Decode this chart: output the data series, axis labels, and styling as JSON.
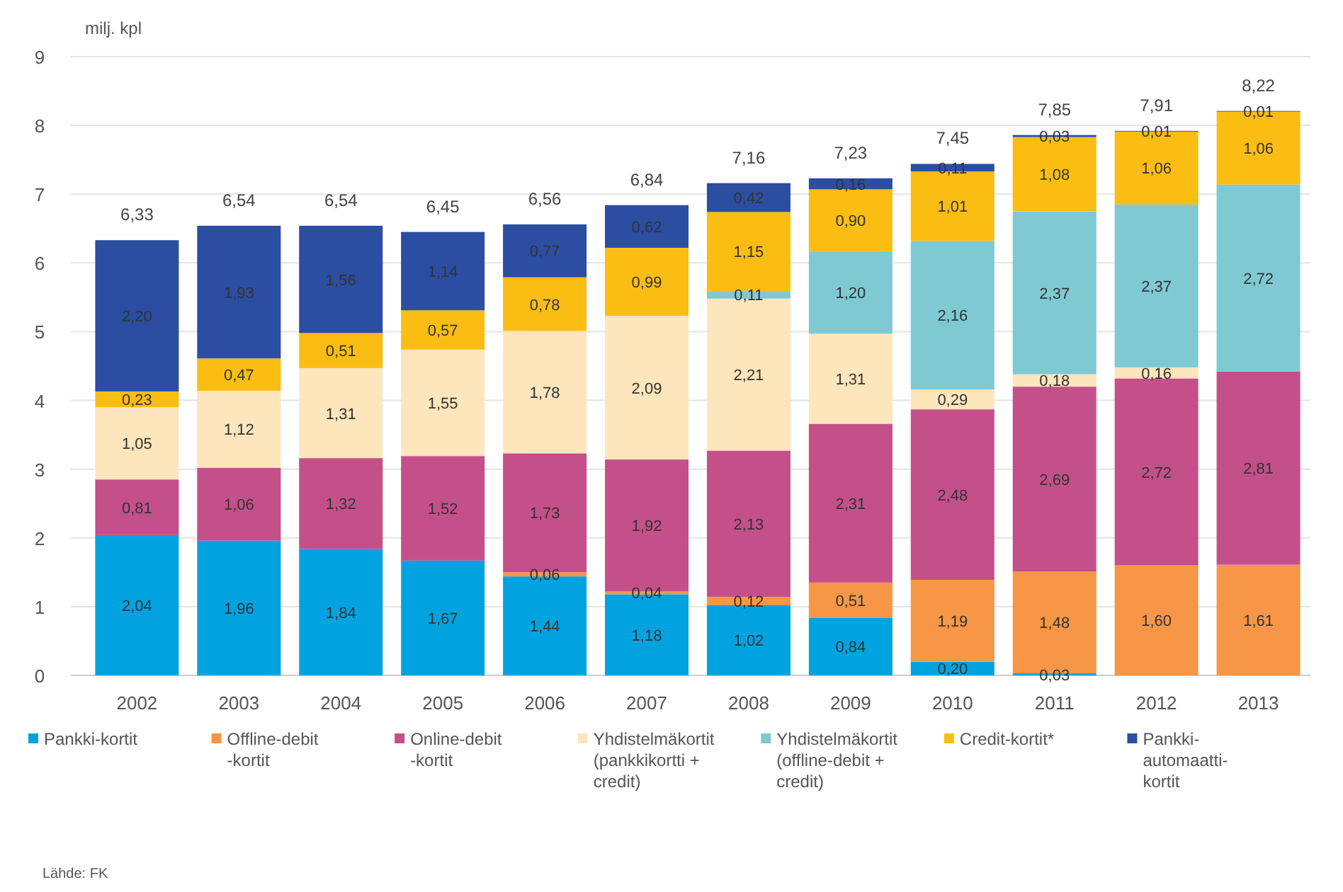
{
  "chart_data": {
    "type": "bar",
    "stacked": true,
    "ylabel": "milj. kpl",
    "categories": [
      "2002",
      "2003",
      "2004",
      "2005",
      "2006",
      "2007",
      "2008",
      "2009",
      "2010",
      "2011",
      "2012",
      "2013"
    ],
    "ylim": [
      0,
      9
    ],
    "yticks": [
      0,
      1,
      2,
      3,
      4,
      5,
      6,
      7,
      8,
      9
    ],
    "grid": "y",
    "legend": "bottom",
    "data_labels": true,
    "series": [
      {
        "name": "Pankki-kortit",
        "color": "#00a3e0",
        "values": [
          2.04,
          1.96,
          1.84,
          1.67,
          1.44,
          1.18,
          1.02,
          0.84,
          0.2,
          0.03,
          null,
          null
        ],
        "value_labels": [
          "2,04",
          "1,96",
          "1,84",
          "1,67",
          "1,44",
          "1,18",
          "1,02",
          "0,84",
          "0,20",
          "0,03",
          null,
          null
        ]
      },
      {
        "name": "Offline-debit -kortit",
        "color": "#f79646",
        "values": [
          null,
          null,
          null,
          null,
          0.06,
          0.04,
          0.12,
          0.51,
          1.19,
          1.48,
          1.6,
          1.61
        ],
        "value_labels": [
          null,
          null,
          null,
          null,
          "0,06",
          "0,04",
          "0,12",
          "0,51",
          "1,19",
          "1,48",
          "1,60",
          "1,61"
        ]
      },
      {
        "name": "Online-debit -kortit",
        "color": "#c4508a",
        "values": [
          0.81,
          1.06,
          1.32,
          1.52,
          1.73,
          1.92,
          2.13,
          2.31,
          2.48,
          2.69,
          2.72,
          2.81
        ],
        "value_labels": [
          "0,81",
          "1,06",
          "1,32",
          "1,52",
          "1,73",
          "1,92",
          "2,13",
          "2,31",
          "2,48",
          "2,69",
          "2,72",
          "2,81"
        ]
      },
      {
        "name": "Yhdistelmäkortit (pankkikortti + credit)",
        "color": "#fde5bc",
        "values": [
          1.05,
          1.12,
          1.31,
          1.55,
          1.78,
          2.09,
          2.21,
          1.31,
          0.29,
          0.18,
          0.16,
          null
        ],
        "value_labels": [
          "1,05",
          "1,12",
          "1,31",
          "1,55",
          "1,78",
          "2,09",
          "2,21",
          "1,31",
          "0,29",
          "0,18",
          "0,16",
          null
        ]
      },
      {
        "name": "Yhdistelmäkortit (offline-debit + credit)",
        "color": "#7fc9d3",
        "values": [
          null,
          null,
          null,
          null,
          null,
          null,
          0.11,
          1.2,
          2.16,
          2.37,
          2.37,
          2.72
        ],
        "value_labels": [
          null,
          null,
          null,
          null,
          null,
          null,
          "0,11",
          "1,20",
          "2,16",
          "2,37",
          "2,37",
          "2,72"
        ]
      },
      {
        "name": "Credit-kortit*",
        "color": "#fbbd12",
        "values": [
          0.23,
          0.47,
          0.51,
          0.57,
          0.78,
          0.99,
          1.15,
          0.9,
          1.01,
          1.08,
          1.06,
          1.06
        ],
        "value_labels": [
          "0,23",
          "0,47",
          "0,51",
          "0,57",
          "0,78",
          "0,99",
          "1,15",
          "0,90",
          "1,01",
          "1,08",
          "1,06",
          "1,06"
        ]
      },
      {
        "name": "Pankki-automaatti-kortit",
        "color": "#2b4ea2",
        "values": [
          2.2,
          1.93,
          1.56,
          1.14,
          0.77,
          0.62,
          0.42,
          0.16,
          0.11,
          0.03,
          0.01,
          0.01
        ],
        "value_labels": [
          "2,20",
          "1,93",
          "1,56",
          "1,14",
          "0,77",
          "0,62",
          "0,42",
          "0,16",
          "0,11",
          "0,03",
          "0,01",
          "0,01"
        ]
      }
    ],
    "totals": [
      "6,33",
      "6,54",
      "6,54",
      "6,45",
      "6,56",
      "6,84",
      "7,16",
      "7,23",
      "7,45",
      "7,85",
      "7,91",
      "8,22"
    ],
    "annotations": [
      "Lähde: FK"
    ]
  }
}
